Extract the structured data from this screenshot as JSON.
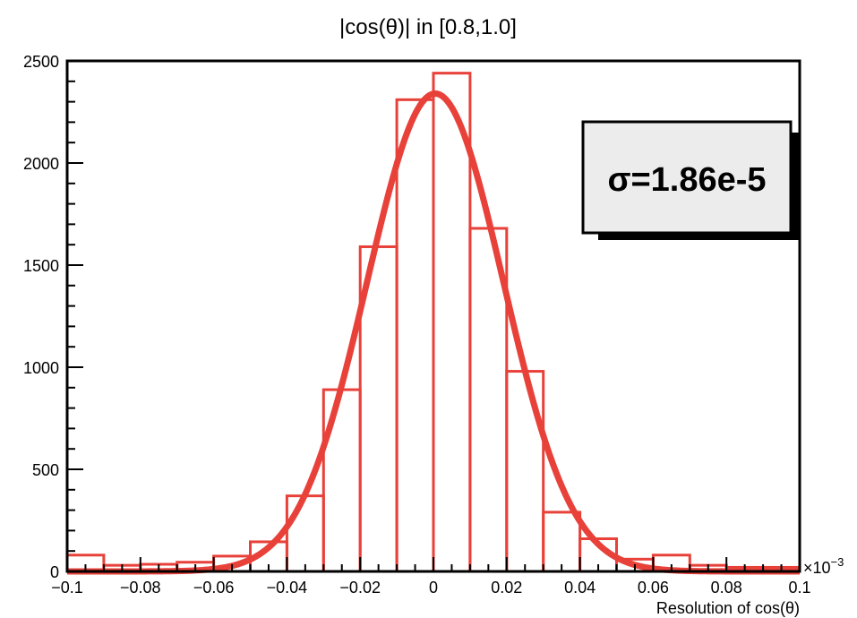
{
  "chart_data": {
    "type": "bar",
    "title": "|cos(θ)| in [0.8,1.0]",
    "xlabel": "Resolution of cos(θ)",
    "x_multiplier": "×10",
    "x_multiplier_exp": "−3",
    "xlim": [
      -0.1,
      0.1
    ],
    "ylim": [
      0,
      2500
    ],
    "xticks": [
      -0.1,
      -0.08,
      -0.06,
      -0.04,
      -0.02,
      0,
      0.02,
      0.04,
      0.06,
      0.08,
      0.1
    ],
    "xtick_labels": [
      "−0.1",
      "−0.08",
      "−0.06",
      "−0.04",
      "−0.02",
      "0",
      "0.02",
      "0.04",
      "0.06",
      "0.08",
      "0.1"
    ],
    "yticks": [
      0,
      500,
      1000,
      1500,
      2000,
      2500
    ],
    "ytick_labels": [
      "0",
      "500",
      "1000",
      "1500",
      "2000",
      "2500"
    ],
    "histogram": {
      "bin_edges": [
        -0.1,
        -0.09,
        -0.08,
        -0.07,
        -0.06,
        -0.05,
        -0.04,
        -0.03,
        -0.02,
        -0.01,
        0,
        0.01,
        0.02,
        0.03,
        0.04,
        0.05,
        0.06,
        0.07,
        0.08,
        0.09,
        0.1
      ],
      "counts": [
        80,
        30,
        35,
        45,
        75,
        145,
        370,
        890,
        1590,
        2310,
        2440,
        1680,
        980,
        290,
        160,
        60,
        80,
        30,
        20,
        20
      ],
      "color": "#e8413a"
    },
    "fit": {
      "type": "gaussian",
      "amplitude": 2340,
      "mean": 0.0005,
      "sigma": 0.0186,
      "color": "#e8413a"
    },
    "stat_box": {
      "text": "σ=1.86e-5"
    },
    "grid": false
  }
}
